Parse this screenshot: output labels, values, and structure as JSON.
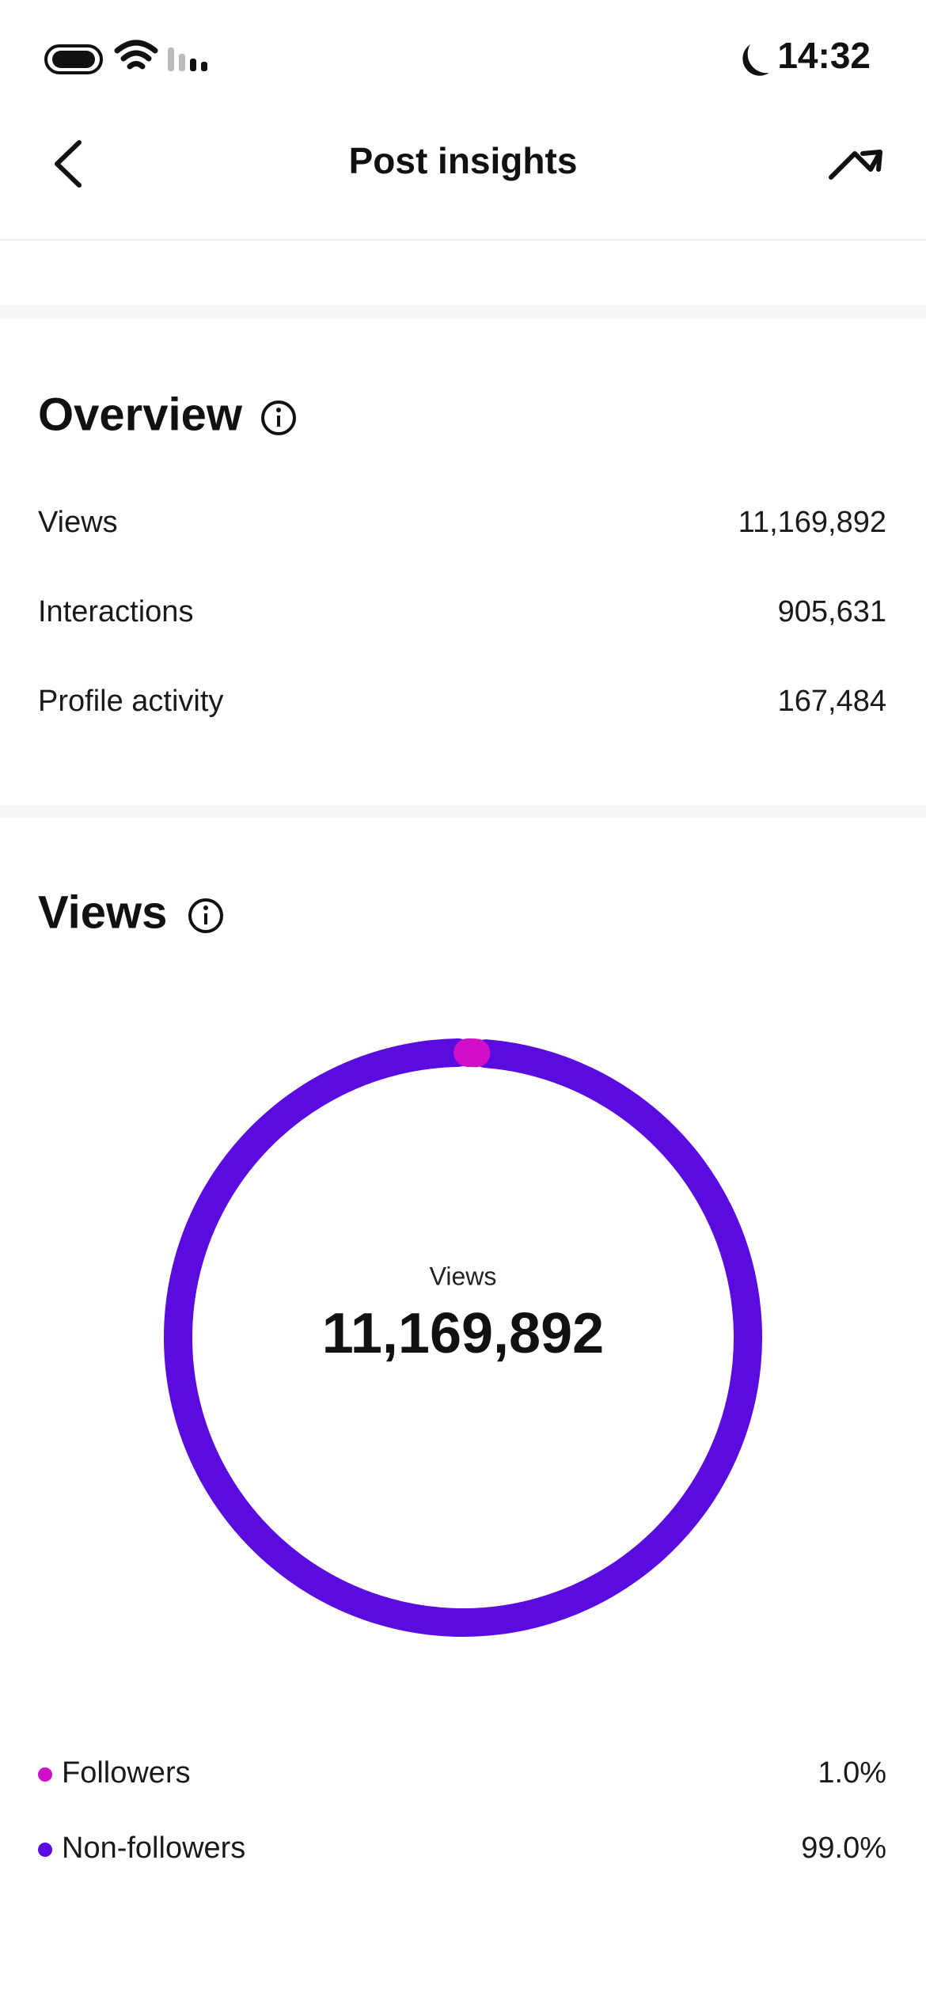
{
  "status_bar": {
    "time": "14:32"
  },
  "header": {
    "title": "Post insights"
  },
  "overview": {
    "title": "Overview",
    "rows": [
      {
        "label": "Views",
        "value": "11,169,892"
      },
      {
        "label": "Interactions",
        "value": "905,631"
      },
      {
        "label": "Profile activity",
        "value": "167,484"
      }
    ]
  },
  "chart_data": {
    "type": "donut",
    "title": "Views",
    "center_label": "Views",
    "center_value": "11,169,892",
    "categories": [
      "Followers",
      "Non-followers"
    ],
    "values": [
      1.0,
      99.0
    ],
    "value_labels": [
      "1.0%",
      "99.0%"
    ],
    "colors": [
      "#d10ec8",
      "#5a0be0"
    ]
  }
}
